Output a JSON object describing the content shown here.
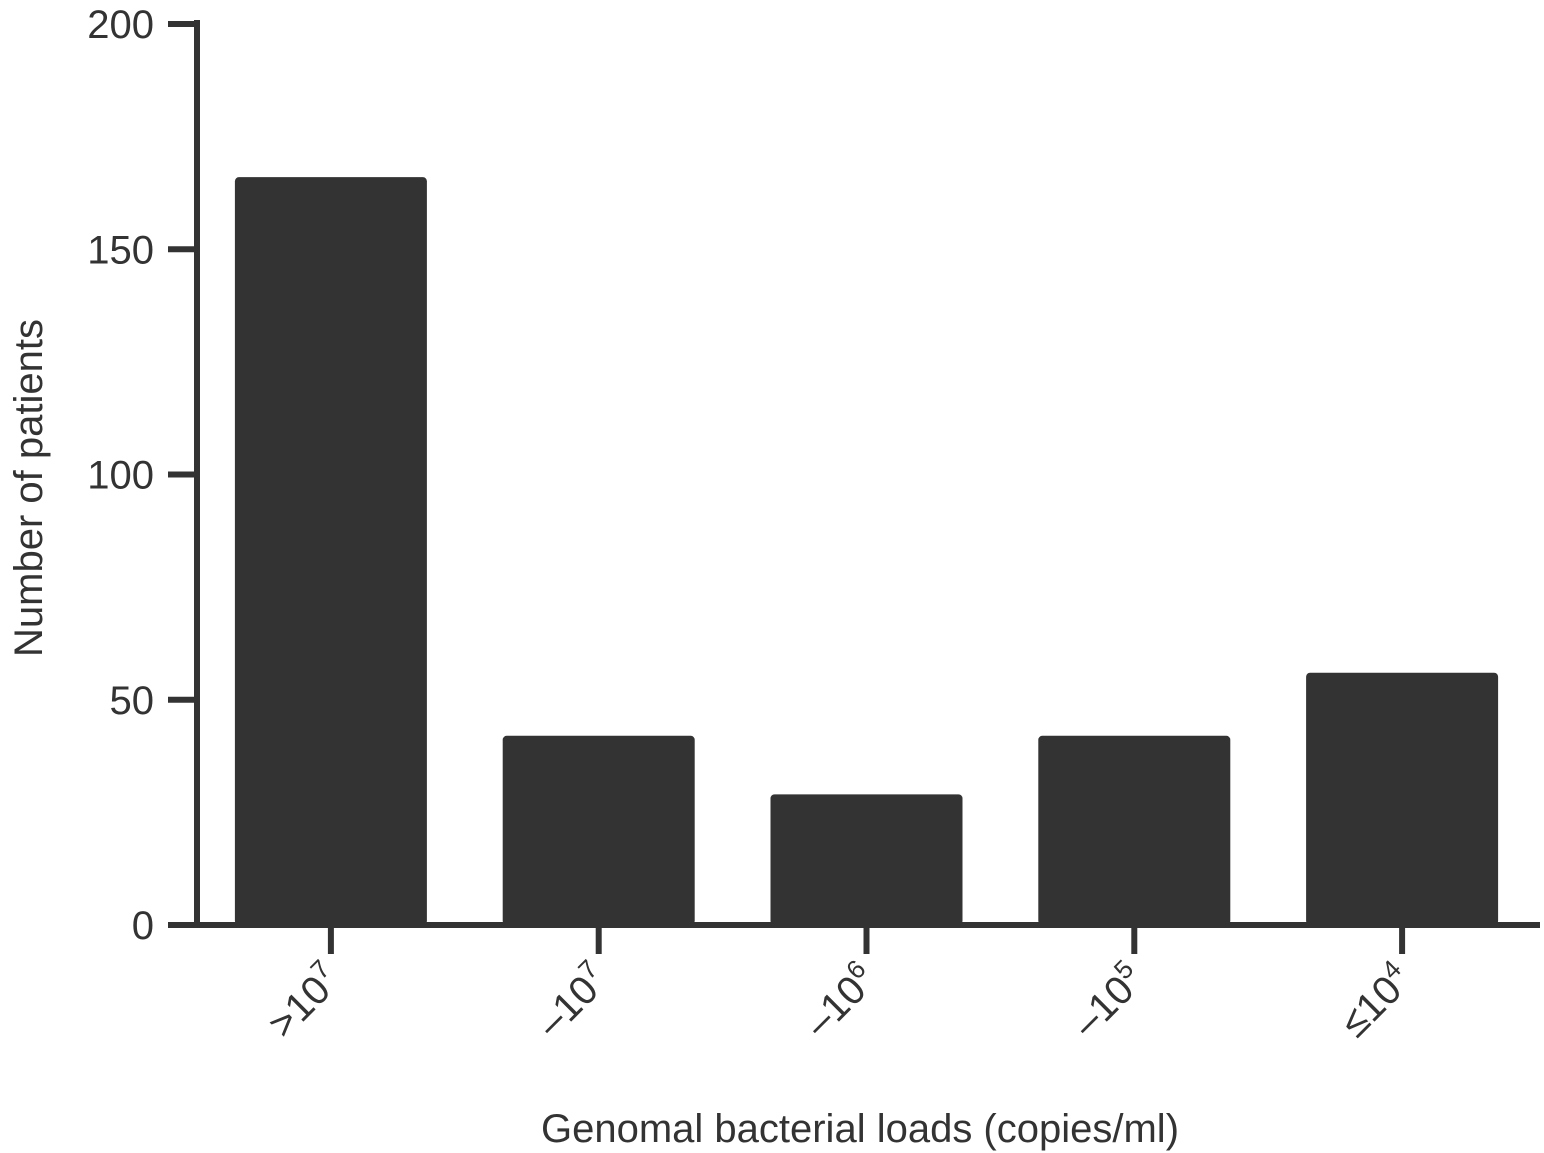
{
  "chart_data": {
    "type": "bar",
    "title": "",
    "xlabel": "Genomal bacterial loads (copies/ml)",
    "ylabel": "Number of patients",
    "ylim": [
      0,
      200
    ],
    "yticks": [
      0,
      50,
      100,
      150,
      200
    ],
    "categories": [
      {
        "prefix": ">10",
        "exponent": "7"
      },
      {
        "prefix": "–10",
        "exponent": "7"
      },
      {
        "prefix": "–10",
        "exponent": "6"
      },
      {
        "prefix": "–10",
        "exponent": "5"
      },
      {
        "prefix": "≤10",
        "exponent": "4"
      }
    ],
    "values": [
      166,
      42,
      29,
      42,
      56
    ],
    "grid": false,
    "legend": "none",
    "colors": {
      "bar": "#333333",
      "axis": "#333333",
      "text": "#333333"
    }
  }
}
